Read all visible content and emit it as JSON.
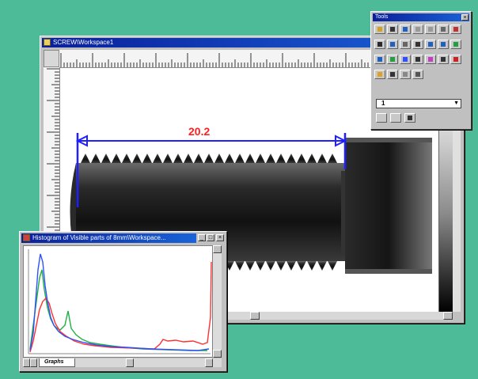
{
  "image_window": {
    "title": "SCREW\\Workspace1"
  },
  "measurement": {
    "value": "20.2",
    "color": "#2020ff",
    "label_color": "#ff2020"
  },
  "histogram_window": {
    "title": "Histogram of Visible parts of 8mm\\Workspace...",
    "tab_label": "Graphs",
    "series_colors": [
      "#ff3030",
      "#20b040",
      "#3050ff"
    ]
  },
  "tools_window": {
    "title": "Tools",
    "combo_value": "1"
  }
}
